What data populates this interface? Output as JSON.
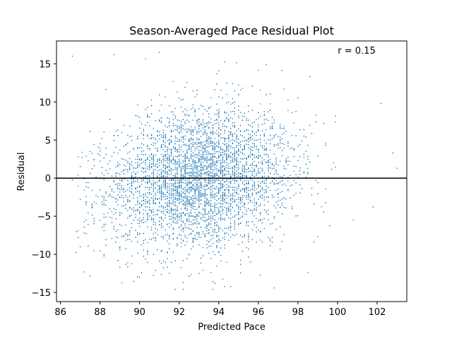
{
  "chart_data": {
    "type": "scatter",
    "title": "Season-Averaged Pace Residual Plot",
    "xlabel": "Predicted Pace",
    "ylabel": "Residual",
    "xlim": [
      85.8,
      103.5
    ],
    "ylim": [
      -16.2,
      18.0
    ],
    "xticks": [
      86,
      88,
      90,
      92,
      94,
      96,
      98,
      100,
      102
    ],
    "yticks": [
      -15,
      -10,
      -5,
      0,
      5,
      10,
      15
    ],
    "grid": false,
    "reference_line": {
      "y": 0,
      "color": "#000000"
    },
    "annotation": "r = 0.15",
    "point_color": "#1f77b4",
    "distribution": {
      "approx_count": 4000,
      "x_center": 93.0,
      "x_spread": 2.3,
      "x_range": [
        86.6,
        103.0
      ],
      "y_center": 0.0,
      "y_spread": 4.6,
      "y_range": [
        -14.8,
        16.5
      ],
      "correlation": 0.15
    },
    "notable_points": [
      {
        "x": 86.6,
        "y": 16.0
      },
      {
        "x": 88.7,
        "y": 16.2
      },
      {
        "x": 91.0,
        "y": 16.5
      },
      {
        "x": 102.2,
        "y": 9.8
      },
      {
        "x": 102.8,
        "y": 3.3
      },
      {
        "x": 103.0,
        "y": 1.3
      },
      {
        "x": 101.8,
        "y": -3.8
      },
      {
        "x": 100.8,
        "y": -5.5
      },
      {
        "x": 87.2,
        "y": -12.3
      },
      {
        "x": 91.8,
        "y": -14.6
      },
      {
        "x": 93.7,
        "y": -14.6
      },
      {
        "x": 93.8,
        "y": -13.8
      }
    ]
  }
}
